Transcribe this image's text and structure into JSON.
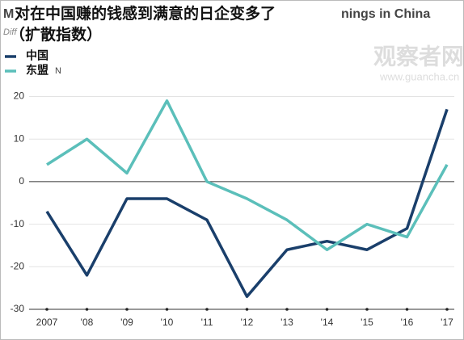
{
  "chart_data": {
    "type": "line",
    "title": "对在中国赚的钱感到满意的日企变多了",
    "subtitle": "（扩散指数）",
    "background_title_fragments": [
      "M",
      "nings in China"
    ],
    "background_subtitle_fragment": "Diff",
    "legend_fragment": "N",
    "watermark": [
      "观察者网",
      "www.guancha.cn"
    ],
    "categories": [
      "2007",
      "'08",
      "'09",
      "'10",
      "'11",
      "'12",
      "'13",
      "'14",
      "'15",
      "'16",
      "'17"
    ],
    "series": [
      {
        "name": "中国",
        "color": "#1a3f6b",
        "values": [
          -7,
          -22,
          -4,
          -4,
          -9,
          -27,
          -16,
          -14,
          -16,
          -11,
          17
        ]
      },
      {
        "name": "东盟",
        "color": "#5bbfba",
        "values": [
          4,
          10,
          2,
          19,
          0,
          -4,
          -9,
          -16,
          -10,
          -13,
          4
        ]
      }
    ],
    "ylim": [
      -30,
      22
    ],
    "yticks": [
      -30,
      -20,
      -10,
      0,
      10,
      20
    ],
    "grid": true
  }
}
